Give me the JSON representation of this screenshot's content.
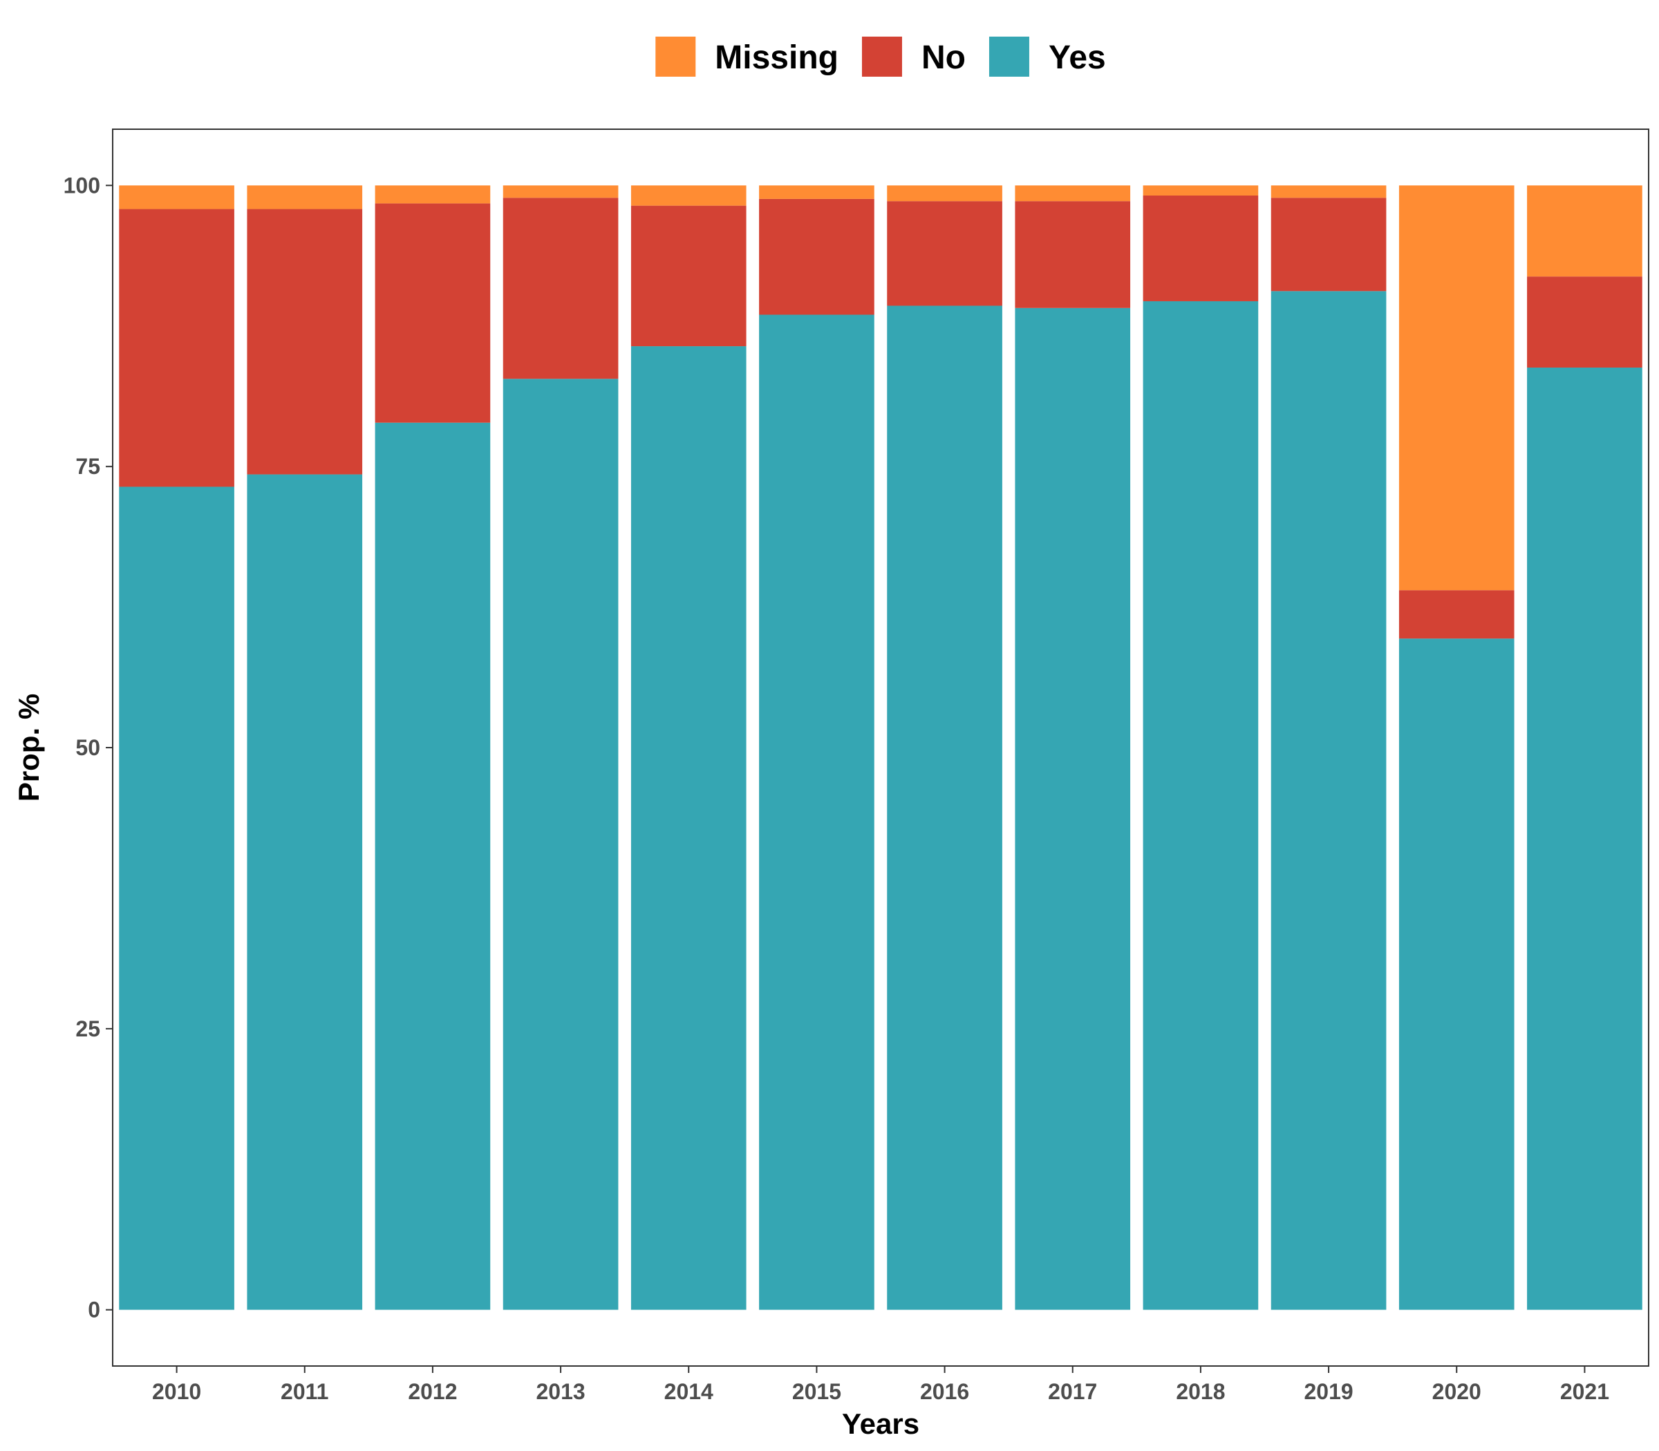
{
  "chart_data": {
    "type": "bar",
    "stacked": true,
    "categories": [
      "2010",
      "2011",
      "2012",
      "2013",
      "2014",
      "2015",
      "2016",
      "2017",
      "2018",
      "2019",
      "2020",
      "2021"
    ],
    "series": [
      {
        "name": "Yes",
        "color": "#35A6B3",
        "values": [
          73.2,
          74.3,
          78.9,
          82.8,
          85.7,
          88.5,
          89.3,
          89.1,
          89.7,
          90.6,
          59.7,
          83.8
        ]
      },
      {
        "name": "No",
        "color": "#D34234",
        "values": [
          24.7,
          23.6,
          19.5,
          16.1,
          12.5,
          10.3,
          9.3,
          9.5,
          9.4,
          8.3,
          4.3,
          8.1
        ]
      },
      {
        "name": "Missing",
        "color": "#FF8C33",
        "values": [
          2.1,
          2.1,
          1.6,
          1.1,
          1.8,
          1.2,
          1.4,
          1.4,
          0.9,
          1.1,
          36.0,
          8.1
        ]
      }
    ],
    "legend_order": [
      "Missing",
      "No",
      "Yes"
    ],
    "legend_position": "top",
    "xlabel": "Years",
    "ylabel": "Prop. %",
    "yticks": [
      0,
      25,
      50,
      75,
      100
    ],
    "ylim": [
      -5,
      105
    ],
    "grid": false
  }
}
